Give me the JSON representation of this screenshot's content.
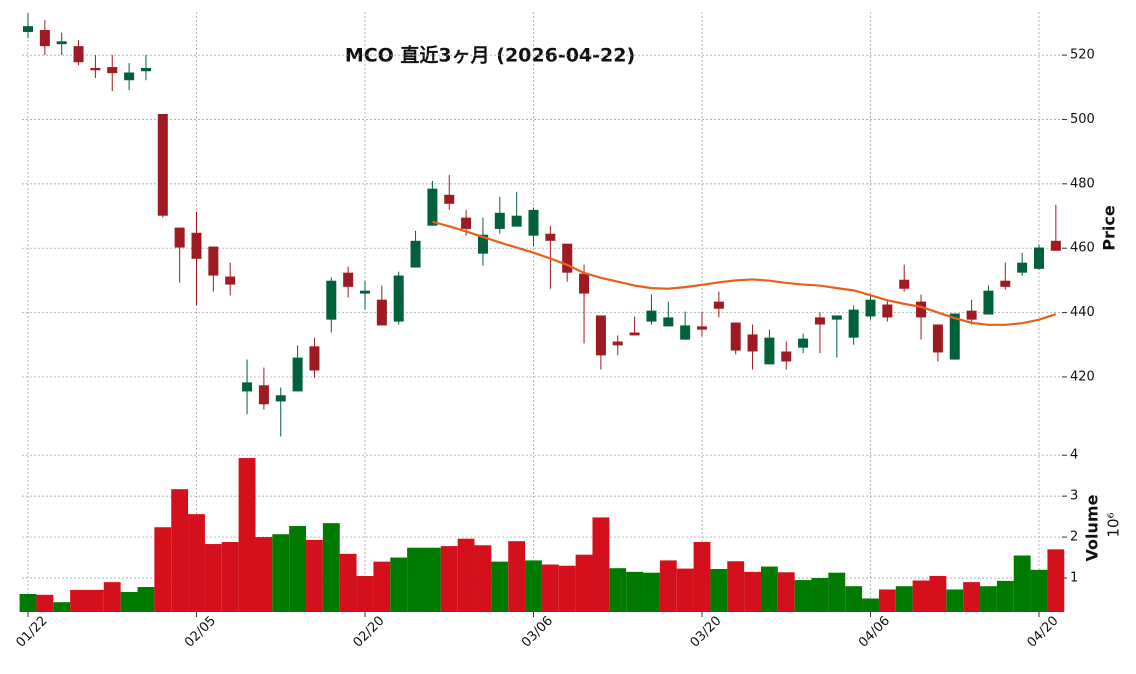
{
  "chart_data": {
    "type": "candlestick",
    "title": "MCO  直近3ヶ月  (2026-04-22)",
    "categories": [
      "01/22",
      null,
      null,
      null,
      null,
      null,
      null,
      null,
      null,
      null,
      "02/05",
      null,
      null,
      null,
      null,
      null,
      null,
      null,
      null,
      null,
      "02/20",
      null,
      null,
      null,
      null,
      null,
      null,
      null,
      null,
      null,
      "03/06",
      null,
      null,
      null,
      null,
      null,
      null,
      null,
      null,
      null,
      "03/20",
      null,
      null,
      null,
      null,
      null,
      null,
      null,
      null,
      null,
      "04/06",
      null,
      null,
      null,
      null,
      null,
      null,
      null,
      null,
      null,
      "04/20",
      null
    ],
    "open": [
      527.2,
      527.8,
      523.4,
      522.8,
      516,
      516.3,
      512.2,
      515,
      501.7,
      466.4,
      464.8,
      460.5,
      451.2,
      415.5,
      417.4,
      412.4,
      415.5,
      429.5,
      437.8,
      452.4,
      445.9,
      444,
      437.2,
      454,
      467,
      476.6,
      469.5,
      458.3,
      466,
      466.7,
      463.9,
      464.5,
      461.4,
      452.1,
      439.1,
      431,
      433.8,
      437.2,
      435.7,
      431.6,
      435.7,
      443.4,
      436.9,
      433.2,
      423.9,
      427.9,
      429.1,
      438.5,
      437.8,
      432.2,
      438.8,
      442.5,
      450.2,
      443.4,
      436.3,
      425.4,
      440.6,
      439.4,
      449.9,
      452.4,
      453.6,
      462.3
    ],
    "high": [
      533,
      530.9,
      527,
      524.7,
      520,
      520,
      517.5,
      520,
      501.7,
      466.4,
      471.3,
      460.5,
      455.5,
      425.4,
      422.9,
      416.7,
      429.8,
      432.2,
      450.9,
      454.3,
      449.9,
      448.4,
      452.7,
      465.4,
      480.9,
      482.8,
      471.9,
      469.5,
      476,
      477.5,
      472.6,
      467,
      461.4,
      454.9,
      439.1,
      432.9,
      438.8,
      445.6,
      443.4,
      440.3,
      440.3,
      446.5,
      436.9,
      436.3,
      434.7,
      431,
      433.5,
      440.1,
      439.1,
      442.2,
      445.3,
      444,
      454.9,
      445.6,
      436.3,
      439.7,
      444,
      448.4,
      455.5,
      458.6,
      461.1,
      473.5
    ],
    "low": [
      525.3,
      520,
      520,
      516.9,
      512.9,
      508.8,
      509.1,
      512.2,
      469.5,
      449.3,
      442.2,
      446.5,
      445.3,
      408.4,
      409.9,
      401.5,
      415.5,
      419.8,
      433.8,
      444.7,
      440.9,
      436,
      436.3,
      454,
      467,
      471.9,
      463.9,
      454.6,
      464.5,
      466.7,
      460.5,
      447.4,
      449.6,
      430.4,
      422.3,
      426.7,
      432.9,
      436.3,
      435.7,
      431.5,
      432.6,
      438.5,
      427,
      422.3,
      423.9,
      422.3,
      427.4,
      427.4,
      426,
      430,
      437.8,
      437.2,
      446.5,
      431.6,
      424.8,
      425.4,
      436.3,
      439.4,
      447.1,
      451.5,
      453.3,
      459.2
    ],
    "close": [
      529,
      522.8,
      524.3,
      517.8,
      515.3,
      514.4,
      514.6,
      516,
      470.1,
      460.2,
      456.7,
      451.5,
      448.7,
      418.3,
      411.5,
      414.3,
      426,
      422,
      449.9,
      448,
      446.8,
      436,
      451.5,
      462.3,
      478.5,
      473.8,
      466,
      464.2,
      471,
      470.1,
      471.9,
      462.3,
      452.4,
      445.9,
      426.7,
      429.8,
      432.9,
      440.6,
      438.5,
      436,
      434.7,
      441.2,
      428.2,
      427.9,
      432.2,
      424.8,
      431.9,
      436.3,
      439.1,
      440.9,
      444,
      438.5,
      447.4,
      438.5,
      427.6,
      439.7,
      437.8,
      446.8,
      448,
      455.5,
      460.2,
      459.2
    ],
    "up_color": "#00613a",
    "down_color": "#9e1b24",
    "ylim": [
      400.4,
      533.4
    ],
    "yticks": [
      420,
      440,
      460,
      480,
      500,
      520
    ],
    "ylabel": "Price",
    "moving_average": {
      "color": "#e8601c",
      "values": [
        null,
        null,
        null,
        null,
        null,
        null,
        null,
        null,
        null,
        null,
        null,
        null,
        null,
        null,
        null,
        null,
        null,
        null,
        null,
        null,
        null,
        null,
        null,
        null,
        468.2,
        466.8,
        465.2,
        463.5,
        461.8,
        460.2,
        458.6,
        456.8,
        454.8,
        452.3,
        450.8,
        449.6,
        448.4,
        447.6,
        447.4,
        447.9,
        448.6,
        449.4,
        450,
        450.3,
        449.9,
        449.2,
        448.7,
        448.4,
        447.6,
        446.9,
        445.4,
        443.8,
        442.7,
        441.8,
        440,
        438.3,
        436.8,
        436.2,
        436.2,
        436.7,
        437.8,
        439.5
      ]
    },
    "volume": {
      "values": [
        0.61,
        0.59,
        0.41,
        0.71,
        0.71,
        0.9,
        0.66,
        0.78,
        2.24,
        3.17,
        2.56,
        1.83,
        1.88,
        3.93,
        2.0,
        2.07,
        2.27,
        1.93,
        2.34,
        1.59,
        1.05,
        1.4,
        1.5,
        1.74,
        1.74,
        1.78,
        1.96,
        1.8,
        1.4,
        1.9,
        1.43,
        1.33,
        1.3,
        1.57,
        2.48,
        1.24,
        1.15,
        1.13,
        1.43,
        1.23,
        1.88,
        1.22,
        1.41,
        1.15,
        1.28,
        1.14,
        0.95,
        1.0,
        1.13,
        0.8,
        0.5,
        0.72,
        0.8,
        0.94,
        1.05,
        0.72,
        0.9,
        0.8,
        0.93,
        1.55,
        1.2,
        1.7
      ],
      "up_color": "#007a00",
      "down_color": "#d3101c",
      "ylim": [
        0.17,
        4.2
      ],
      "yticks": [
        1,
        2,
        3,
        4
      ],
      "ylabel": "Volume",
      "scale_label": "10⁶"
    },
    "grid": true
  }
}
